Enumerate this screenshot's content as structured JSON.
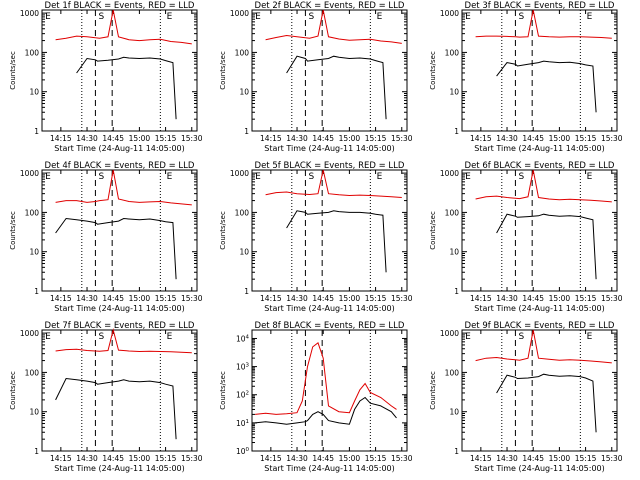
{
  "colors": {
    "events": "#000000",
    "lld": "#e00000",
    "axis": "#000000"
  },
  "chart_data": [
    {
      "type": "line",
      "title": "Det 1f BLACK = Events, RED = LLD",
      "xlabel": "Start Time (24-Aug-11 14:05:00)",
      "ylabel": "Counts/sec",
      "y_scale": "log",
      "ylim": [
        1,
        1200
      ],
      "x_ticks": [
        "14:15",
        "14:30",
        "14:45",
        "15:00",
        "15:15",
        "15:30"
      ],
      "y_ticks": [
        "1",
        "10",
        "100",
        "1000"
      ],
      "markers": [
        "E",
        "S",
        "E"
      ],
      "series": [
        {
          "color": "black",
          "x": [
            14.4,
            14.5,
            14.58,
            14.6,
            14.7,
            14.8,
            14.85,
            14.9,
            15.0,
            15.1,
            15.2,
            15.25,
            15.32,
            15.35
          ],
          "y": [
            30,
            70,
            65,
            60,
            63,
            68,
            75,
            72,
            70,
            72,
            68,
            62,
            55,
            2
          ]
        },
        {
          "color": "red",
          "x": [
            14.2,
            14.3,
            14.4,
            14.5,
            14.58,
            14.62,
            14.7,
            14.75,
            14.8,
            14.9,
            15.0,
            15.1,
            15.2,
            15.3,
            15.4,
            15.5
          ],
          "y": [
            210,
            230,
            260,
            250,
            235,
            230,
            250,
            1200,
            250,
            210,
            200,
            210,
            215,
            190,
            180,
            165
          ]
        }
      ]
    },
    {
      "type": "line",
      "title": "Det 2f BLACK = Events, RED = LLD",
      "xlabel": "Start Time (24-Aug-11 14:05:00)",
      "ylabel": "Counts/sec",
      "y_scale": "log",
      "ylim": [
        1,
        1200
      ],
      "x_ticks": [
        "14:15",
        "14:30",
        "14:45",
        "15:00",
        "15:15",
        "15:30"
      ],
      "y_ticks": [
        "1",
        "10",
        "100",
        "1000"
      ],
      "markers": [
        "E",
        "S",
        "E"
      ],
      "series": [
        {
          "color": "black",
          "x": [
            14.4,
            14.5,
            14.58,
            14.6,
            14.7,
            14.8,
            14.85,
            14.9,
            15.0,
            15.1,
            15.2,
            15.25,
            15.32,
            15.35
          ],
          "y": [
            30,
            80,
            70,
            60,
            65,
            70,
            80,
            75,
            70,
            72,
            68,
            62,
            55,
            2
          ]
        },
        {
          "color": "red",
          "x": [
            14.2,
            14.3,
            14.4,
            14.5,
            14.58,
            14.62,
            14.7,
            14.75,
            14.8,
            14.9,
            15.0,
            15.1,
            15.2,
            15.3,
            15.4,
            15.5
          ],
          "y": [
            210,
            240,
            270,
            250,
            235,
            230,
            260,
            1200,
            250,
            220,
            205,
            210,
            215,
            195,
            185,
            170
          ]
        }
      ]
    },
    {
      "type": "line",
      "title": "Det 3f BLACK = Events, RED = LLD",
      "xlabel": "Start Time (24-Aug-11 14:05:00)",
      "ylabel": "Counts/sec",
      "y_scale": "log",
      "ylim": [
        1,
        1200
      ],
      "x_ticks": [
        "14:15",
        "14:30",
        "14:45",
        "15:00",
        "15:15",
        "15:30"
      ],
      "y_ticks": [
        "1",
        "10",
        "100",
        "1000"
      ],
      "markers": [
        "E",
        "S",
        "E"
      ],
      "series": [
        {
          "color": "black",
          "x": [
            14.4,
            14.5,
            14.58,
            14.6,
            14.7,
            14.8,
            14.85,
            14.9,
            15.0,
            15.1,
            15.2,
            15.25,
            15.32,
            15.35
          ],
          "y": [
            25,
            55,
            50,
            45,
            50,
            55,
            60,
            58,
            55,
            56,
            52,
            48,
            45,
            3
          ]
        },
        {
          "color": "red",
          "x": [
            14.2,
            14.3,
            14.4,
            14.5,
            14.58,
            14.62,
            14.7,
            14.75,
            14.8,
            14.9,
            15.0,
            15.1,
            15.2,
            15.3,
            15.4,
            15.5
          ],
          "y": [
            250,
            260,
            260,
            255,
            250,
            245,
            250,
            1200,
            260,
            250,
            245,
            250,
            250,
            245,
            240,
            230
          ]
        }
      ]
    },
    {
      "type": "line",
      "title": "Det 4f BLACK = Events, RED = LLD",
      "xlabel": "Start Time (24-Aug-11 14:05:00)",
      "ylabel": "Counts/sec",
      "y_scale": "log",
      "ylim": [
        1,
        1200
      ],
      "x_ticks": [
        "14:15",
        "14:30",
        "14:45",
        "15:00",
        "15:15",
        "15:30"
      ],
      "y_ticks": [
        "1",
        "10",
        "100",
        "1000"
      ],
      "markers": [
        "E",
        "S",
        "E"
      ],
      "series": [
        {
          "color": "black",
          "x": [
            14.2,
            14.3,
            14.4,
            14.5,
            14.58,
            14.6,
            14.7,
            14.8,
            14.85,
            14.9,
            15.0,
            15.1,
            15.2,
            15.25,
            15.32,
            15.35
          ],
          "y": [
            30,
            70,
            65,
            60,
            55,
            50,
            55,
            60,
            70,
            68,
            65,
            68,
            62,
            58,
            55,
            2
          ]
        },
        {
          "color": "red",
          "x": [
            14.2,
            14.3,
            14.4,
            14.5,
            14.58,
            14.62,
            14.7,
            14.75,
            14.8,
            14.9,
            15.0,
            15.1,
            15.2,
            15.3,
            15.4,
            15.5
          ],
          "y": [
            180,
            200,
            200,
            180,
            190,
            200,
            210,
            1200,
            220,
            190,
            180,
            185,
            190,
            175,
            165,
            155
          ]
        }
      ]
    },
    {
      "type": "line",
      "title": "Det 5f BLACK = Events, RED = LLD",
      "xlabel": "Start Time (24-Aug-11 14:05:00)",
      "ylabel": "Counts/sec",
      "y_scale": "log",
      "ylim": [
        1,
        1200
      ],
      "x_ticks": [
        "14:15",
        "14:30",
        "14:45",
        "15:00",
        "15:15",
        "15:30"
      ],
      "y_ticks": [
        "1",
        "10",
        "100",
        "1000"
      ],
      "markers": [
        "E",
        "S",
        "E"
      ],
      "series": [
        {
          "color": "black",
          "x": [
            14.4,
            14.5,
            14.58,
            14.6,
            14.7,
            14.8,
            14.85,
            14.9,
            15.0,
            15.1,
            15.2,
            15.25,
            15.32,
            15.35
          ],
          "y": [
            40,
            110,
            100,
            90,
            95,
            100,
            110,
            105,
            100,
            100,
            95,
            90,
            85,
            3
          ]
        },
        {
          "color": "red",
          "x": [
            14.2,
            14.3,
            14.4,
            14.5,
            14.58,
            14.62,
            14.7,
            14.75,
            14.8,
            14.9,
            15.0,
            15.1,
            15.2,
            15.3,
            15.4,
            15.5
          ],
          "y": [
            280,
            320,
            330,
            300,
            290,
            285,
            300,
            1200,
            300,
            280,
            270,
            275,
            270,
            260,
            250,
            240
          ]
        }
      ]
    },
    {
      "type": "line",
      "title": "Det 6f BLACK = Events, RED = LLD",
      "xlabel": "Start Time (24-Aug-11 14:05:00)",
      "ylabel": "Counts/sec",
      "y_scale": "log",
      "ylim": [
        1,
        1200
      ],
      "x_ticks": [
        "14:15",
        "14:30",
        "14:45",
        "15:00",
        "15:15",
        "15:30"
      ],
      "y_ticks": [
        "1",
        "10",
        "100",
        "1000"
      ],
      "markers": [
        "E",
        "S",
        "E"
      ],
      "series": [
        {
          "color": "black",
          "x": [
            14.4,
            14.5,
            14.58,
            14.6,
            14.7,
            14.8,
            14.85,
            14.9,
            15.0,
            15.1,
            15.2,
            15.25,
            15.32,
            15.35
          ],
          "y": [
            30,
            90,
            80,
            75,
            78,
            82,
            90,
            85,
            80,
            82,
            78,
            72,
            65,
            2
          ]
        },
        {
          "color": "red",
          "x": [
            14.2,
            14.3,
            14.4,
            14.5,
            14.58,
            14.62,
            14.7,
            14.75,
            14.8,
            14.9,
            15.0,
            15.1,
            15.2,
            15.3,
            15.4,
            15.5
          ],
          "y": [
            220,
            250,
            260,
            240,
            230,
            225,
            250,
            1200,
            240,
            220,
            210,
            215,
            210,
            205,
            195,
            185
          ]
        }
      ]
    },
    {
      "type": "line",
      "title": "Det 7f BLACK = Events, RED = LLD",
      "xlabel": "Start Time (24-Aug-11 14:05:00)",
      "ylabel": "Counts/sec",
      "y_scale": "log",
      "ylim": [
        1,
        1200
      ],
      "x_ticks": [
        "14:15",
        "14:30",
        "14:45",
        "15:00",
        "15:15",
        "15:30"
      ],
      "y_ticks": [
        "1",
        "10",
        "100",
        "1000"
      ],
      "markers": [
        "E",
        "S",
        "E"
      ],
      "series": [
        {
          "color": "black",
          "x": [
            14.2,
            14.3,
            14.4,
            14.5,
            14.58,
            14.6,
            14.7,
            14.8,
            14.85,
            14.9,
            15.0,
            15.1,
            15.2,
            15.25,
            15.32,
            15.35
          ],
          "y": [
            20,
            70,
            65,
            60,
            55,
            50,
            55,
            60,
            65,
            60,
            58,
            60,
            55,
            50,
            45,
            2
          ]
        },
        {
          "color": "red",
          "x": [
            14.2,
            14.3,
            14.4,
            14.5,
            14.58,
            14.62,
            14.7,
            14.75,
            14.8,
            14.9,
            15.0,
            15.1,
            15.2,
            15.3,
            15.4,
            15.5
          ],
          "y": [
            350,
            380,
            390,
            360,
            350,
            345,
            360,
            1200,
            370,
            350,
            340,
            345,
            340,
            335,
            325,
            315
          ]
        }
      ]
    },
    {
      "type": "line",
      "title": "Det 8f BLACK = Events, RED = LLD",
      "xlabel": "Start Time (24-Aug-11 14:05:00)",
      "ylabel": "Counts/sec",
      "y_scale": "log",
      "ylim": [
        1,
        20000
      ],
      "x_ticks": [
        "14:15",
        "14:30",
        "14:45",
        "15:00",
        "15:15",
        "15:30"
      ],
      "y_ticks": [
        "10^0",
        "10^1",
        "10^2",
        "10^3",
        "10^4"
      ],
      "markers": [],
      "series": [
        {
          "color": "black",
          "x": [
            14.1,
            14.2,
            14.3,
            14.4,
            14.5,
            14.58,
            14.6,
            14.65,
            14.7,
            14.75,
            14.8,
            14.9,
            15.0,
            15.05,
            15.1,
            15.15,
            15.2,
            15.3,
            15.4,
            15.45
          ],
          "y": [
            10,
            11,
            10,
            9,
            10,
            11,
            12,
            20,
            25,
            20,
            12,
            10,
            9,
            30,
            60,
            80,
            50,
            40,
            25,
            15
          ]
        },
        {
          "color": "red",
          "x": [
            14.1,
            14.2,
            14.3,
            14.4,
            14.5,
            14.55,
            14.6,
            14.65,
            14.7,
            14.75,
            14.8,
            14.9,
            15.0,
            15.05,
            15.1,
            15.15,
            15.2,
            15.3,
            15.4,
            15.45
          ],
          "y": [
            20,
            22,
            20,
            21,
            23,
            60,
            1000,
            5000,
            7000,
            2000,
            40,
            25,
            23,
            60,
            150,
            250,
            120,
            80,
            40,
            30
          ]
        }
      ]
    },
    {
      "type": "line",
      "title": "Det 9f BLACK = Events, RED = LLD",
      "xlabel": "Start Time (24-Aug-11 14:05:00)",
      "ylabel": "Counts/sec",
      "y_scale": "log",
      "ylim": [
        1,
        1200
      ],
      "x_ticks": [
        "14:15",
        "14:30",
        "14:45",
        "15:00",
        "15:15",
        "15:30"
      ],
      "y_ticks": [
        "1",
        "10",
        "100",
        "1000"
      ],
      "markers": [
        "E",
        "S",
        "E"
      ],
      "series": [
        {
          "color": "black",
          "x": [
            14.4,
            14.5,
            14.58,
            14.6,
            14.7,
            14.8,
            14.85,
            14.9,
            15.0,
            15.1,
            15.2,
            15.25,
            15.32,
            15.35
          ],
          "y": [
            30,
            85,
            75,
            70,
            72,
            78,
            90,
            85,
            80,
            82,
            78,
            72,
            60,
            3
          ]
        },
        {
          "color": "red",
          "x": [
            14.2,
            14.3,
            14.4,
            14.5,
            14.58,
            14.62,
            14.7,
            14.75,
            14.8,
            14.9,
            15.0,
            15.1,
            15.2,
            15.3,
            15.4,
            15.5
          ],
          "y": [
            200,
            230,
            240,
            220,
            210,
            205,
            230,
            1200,
            230,
            215,
            205,
            210,
            205,
            195,
            185,
            175
          ]
        }
      ]
    }
  ]
}
